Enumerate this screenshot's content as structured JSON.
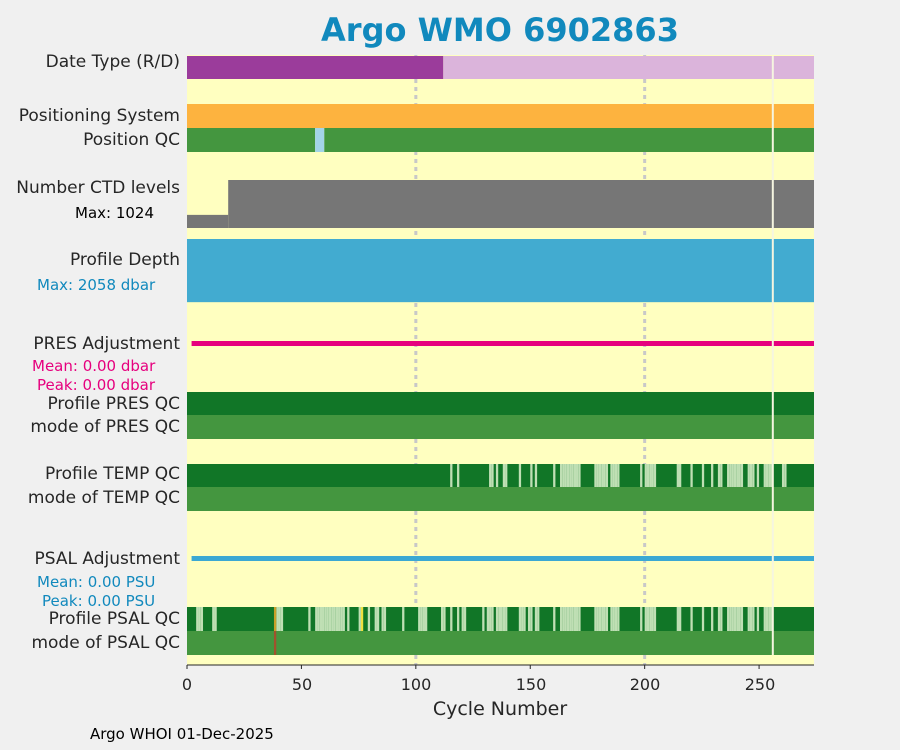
{
  "chart_data": {
    "type": "heatmap",
    "title": "Argo WMO 6902863",
    "xlabel": "Cycle Number",
    "xlim": [
      0,
      274
    ],
    "xticks": [
      0,
      50,
      100,
      150,
      200,
      250
    ],
    "footer": "Argo WHOI 01-Dec-2025",
    "rows": {
      "date_type": {
        "label": "Date Type (R/D)",
        "segments": [
          {
            "from": 0,
            "to": 112,
            "value": "D"
          },
          {
            "from": 112,
            "to": 274,
            "value": "R"
          }
        ]
      },
      "positioning_system": {
        "label": "Positioning System",
        "value": "GPS"
      },
      "position_qc": {
        "label": "Position QC",
        "segments": [
          {
            "from": 0,
            "to": 56,
            "qc": 1
          },
          {
            "from": 56,
            "to": 60,
            "qc": 8
          },
          {
            "from": 60,
            "to": 274,
            "qc": 1
          }
        ]
      },
      "ctd_levels": {
        "label": "Number CTD levels",
        "max_label": "Max: 1024",
        "max": 1024,
        "segments": [
          {
            "from": 0,
            "to": 18,
            "value": 280
          },
          {
            "from": 18,
            "to": 274,
            "value": 1024
          }
        ]
      },
      "profile_depth": {
        "label": "Profile Depth",
        "max_label": "Max: 2058 dbar",
        "max_dbar": 2058,
        "typical_dbar": 2000
      },
      "pres_adjustment": {
        "label": "PRES Adjustment",
        "mean_label": "Mean: 0.00 dbar",
        "peak_label": "Peak: 0.00 dbar",
        "mean": 0.0,
        "peak": 0.0
      },
      "profile_pres_qc": {
        "label": "Profile PRES QC",
        "grade": "A"
      },
      "mode_pres_qc": {
        "label": "mode of PRES QC",
        "qc": 1
      },
      "profile_temp_qc": {
        "label": "Profile TEMP QC",
        "b_grade_cycles": [
          115,
          118,
          132,
          133,
          135,
          138,
          139,
          145,
          150,
          152,
          160,
          163,
          164,
          165,
          166,
          167,
          168,
          169,
          170,
          171,
          178,
          179,
          180,
          181,
          182,
          183,
          185,
          186,
          187,
          188,
          198,
          200,
          201,
          202,
          203,
          204,
          214,
          215,
          220,
          225,
          229,
          232,
          233,
          236,
          237,
          238,
          239,
          240,
          241,
          242,
          245,
          246,
          247,
          249,
          252,
          253,
          254,
          255,
          260,
          261
        ]
      },
      "mode_temp_qc": {
        "label": "mode of TEMP QC",
        "qc": 1
      },
      "psal_adjustment": {
        "label": "PSAL Adjustment",
        "mean_label": "Mean: 0.00 PSU",
        "peak_label": "Peak: 0.00 PSU",
        "mean": 0.0,
        "peak": 0.0
      },
      "profile_psal_qc": {
        "label": "Profile PSAL QC",
        "b_grade_cycles": [
          4,
          5,
          6,
          11,
          12,
          39,
          40,
          41,
          53,
          56,
          57,
          58,
          59,
          60,
          61,
          62,
          63,
          64,
          65,
          66,
          67,
          68,
          70,
          75,
          79,
          82,
          83,
          85,
          86,
          94,
          101,
          102,
          103,
          104,
          111,
          112,
          115,
          118,
          120,
          121,
          129,
          131,
          132,
          133,
          135,
          136,
          137,
          138,
          139,
          145,
          146,
          147,
          149,
          150,
          152,
          153,
          160,
          163,
          164,
          165,
          166,
          167,
          168,
          169,
          170,
          171,
          178,
          179,
          180,
          181,
          182,
          183,
          185,
          186,
          187,
          188,
          198,
          200,
          201,
          202,
          203,
          204,
          214,
          215,
          220,
          225,
          229,
          232,
          233,
          236,
          237,
          238,
          239,
          240,
          241,
          242,
          245,
          246,
          247,
          249,
          252,
          253,
          254,
          255
        ],
        "c_grade_cycles": [
          38
        ],
        "yellow_cycles": [
          76
        ]
      },
      "mode_psal_qc": {
        "label": "mode of PSAL QC",
        "qc3_cycles": [
          38
        ]
      }
    },
    "gridlines": [
      100,
      200
    ],
    "last_cycle_marker": 256
  },
  "colors": {
    "background": "#ffffc0",
    "delayed": "#9b3c9b",
    "realtime": "#dbb4db",
    "gps": "#fdb33f",
    "qc_good": "#44963f",
    "qc_a": "#117627",
    "qc_b": "#bfdfb4",
    "qc_interp": "#a3d4e8",
    "ctd": "#767676",
    "depth": "#42abd0",
    "pres_adj": "#e6007e",
    "psal_adj": "#3ba8d3",
    "title": "#1189bd",
    "qc_c": "#c8a028",
    "qc3": "#a0522d",
    "grid": "#c8c8c8",
    "marker": "#f5f5e0"
  }
}
